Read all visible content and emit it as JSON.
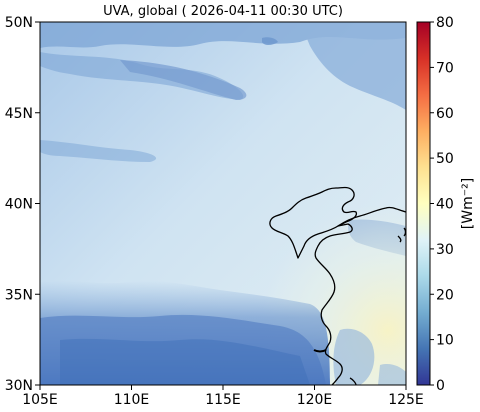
{
  "map": {
    "title": "UVA, global ( 2026-04-11 00:30 UTC)",
    "lon_ticks": [
      "105E",
      "110E",
      "115E",
      "120E",
      "125E"
    ],
    "lat_ticks": [
      "30N",
      "35N",
      "40N",
      "45N",
      "50N"
    ],
    "extent": {
      "lon": [
        105,
        125
      ],
      "lat": [
        30,
        50
      ]
    },
    "coastline_color": "#000000",
    "field_colors": {
      "deep_blue": "#3f6fb8",
      "mid_blue": "#7ea6d6",
      "light_blue": "#c9dff0",
      "pale": "#eef5ea",
      "yellow_tint": "#f6f2c8"
    }
  },
  "colorbar": {
    "label": "[Wm⁻²]",
    "ticks": [
      "0",
      "10",
      "20",
      "30",
      "40",
      "50",
      "60",
      "70",
      "80"
    ],
    "range": [
      0,
      80
    ],
    "colormap": "RdYlBu_r"
  }
}
